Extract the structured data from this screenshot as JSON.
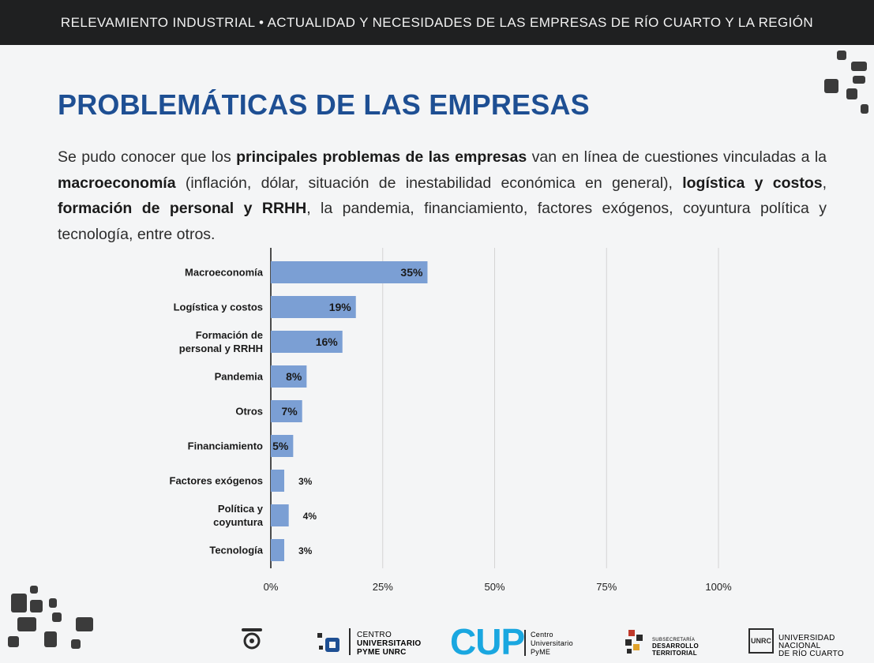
{
  "header": {
    "title": "RELEVAMIENTO INDUSTRIAL • ACTUALIDAD Y NECESIDADES DE LAS EMPRESAS DE RÍO CUARTO Y LA REGIÓN"
  },
  "slide": {
    "title": "PROBLEMÁTICAS DE LAS EMPRESAS",
    "intro": {
      "t1": "Se pudo conocer que los ",
      "b1": "principales problemas de las empresas",
      "t2": " van en línea de cuestiones vinculadas a la ",
      "b2": "macroeconomía",
      "t3": " (inflación, dólar, situación de inestabilidad económica en general), ",
      "b3": "logística y costos",
      "t4": ", ",
      "b4": "formación de personal y RRHH",
      "t5": ", la pandemia, financiamiento, factores exógenos, coyuntura política y tecnología, entre otros."
    }
  },
  "chart_data": {
    "type": "bar",
    "orientation": "horizontal",
    "categories": [
      [
        "Macroeconomía"
      ],
      [
        "Logística y costos"
      ],
      [
        "Formación de",
        "personal y RRHH"
      ],
      [
        "Pandemia"
      ],
      [
        "Otros"
      ],
      [
        "Financiamiento"
      ],
      [
        "Factores exógenos"
      ],
      [
        "Política y",
        "coyuntura"
      ],
      [
        "Tecnología"
      ]
    ],
    "values": [
      35,
      19,
      16,
      8,
      7,
      5,
      3,
      4,
      3
    ],
    "data_labels": [
      "35%",
      "19%",
      "16%",
      "8%",
      "7%",
      "5%",
      "3%",
      "4%",
      "3%"
    ],
    "x_ticks": [
      "0%",
      "25%",
      "50%",
      "75%",
      "100%"
    ],
    "xlim": [
      0,
      100
    ],
    "grid": true,
    "bar_color": "#7b9fd4"
  },
  "footer": {
    "logo2": [
      "CENTRO",
      "UNIVERSITARIO",
      "PYME UNRC"
    ],
    "logo3": "CUP",
    "logo3_sub": [
      "Centro",
      "Universitario",
      "PyME"
    ],
    "logo4": [
      "SUBSECRETARÍA",
      "DESARROLLO",
      "TERRITORIAL"
    ],
    "logo5_mark": "UNRC",
    "logo5": [
      "UNIVERSIDAD",
      "NACIONAL",
      "DE RÍO CUARTO"
    ]
  }
}
